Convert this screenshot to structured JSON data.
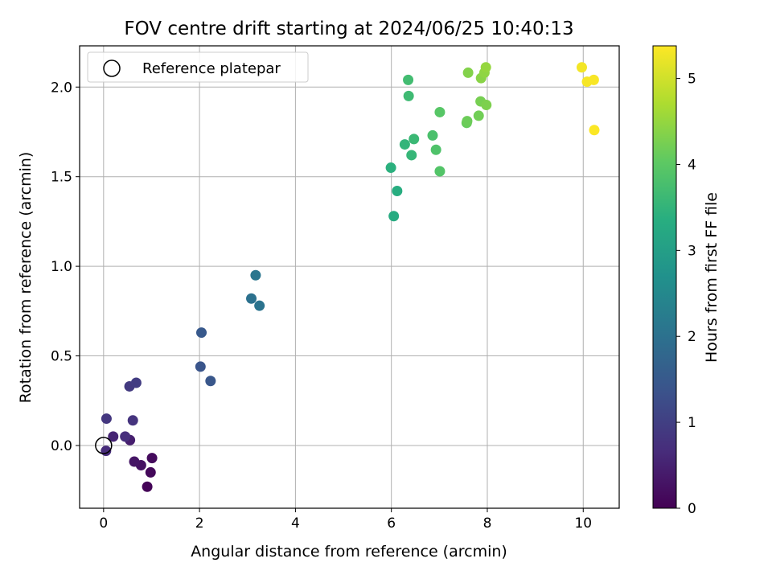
{
  "chart_data": {
    "type": "scatter",
    "title": "FOV centre drift starting at 2024/06/25 10:40:13",
    "xlabel": "Angular distance from reference (arcmin)",
    "ylabel": "Rotation from reference (arcmin)",
    "xlim": [
      -0.5,
      10.75
    ],
    "ylim": [
      -0.35,
      2.23
    ],
    "xticks": [
      "0",
      "2",
      "4",
      "6",
      "8",
      "10"
    ],
    "yticks": [
      "0.0",
      "0.5",
      "1.0",
      "1.5",
      "2.0"
    ],
    "grid": true,
    "legend": {
      "placement": "top-left",
      "entries": [
        "Reference platepar"
      ]
    },
    "reference_point": {
      "x": 0,
      "y": 0
    },
    "colorbar": {
      "label": "Hours from first FF file",
      "colormap": "viridis",
      "range": [
        0,
        5.38
      ],
      "ticks": [
        "0",
        "1",
        "2",
        "3",
        "4",
        "5"
      ]
    },
    "points": [
      {
        "x": 0.91,
        "y": -0.23,
        "t": 0.05
      },
      {
        "x": 0.98,
        "y": -0.15,
        "t": 0.1
      },
      {
        "x": 1.01,
        "y": -0.07,
        "t": 0.15
      },
      {
        "x": 0.78,
        "y": -0.11,
        "t": 0.25
      },
      {
        "x": 0.64,
        "y": -0.09,
        "t": 0.3
      },
      {
        "x": 0.55,
        "y": 0.03,
        "t": 0.45
      },
      {
        "x": 0.2,
        "y": 0.05,
        "t": 0.55
      },
      {
        "x": 0.05,
        "y": -0.03,
        "t": 0.65
      },
      {
        "x": 0.45,
        "y": 0.05,
        "t": 0.7
      },
      {
        "x": 0.61,
        "y": 0.14,
        "t": 0.8
      },
      {
        "x": 0.06,
        "y": 0.15,
        "t": 0.85
      },
      {
        "x": 0.54,
        "y": 0.33,
        "t": 0.9
      },
      {
        "x": 0.68,
        "y": 0.35,
        "t": 0.95
      },
      {
        "x": 2.02,
        "y": 0.44,
        "t": 1.4
      },
      {
        "x": 2.23,
        "y": 0.36,
        "t": 1.45
      },
      {
        "x": 2.04,
        "y": 0.63,
        "t": 1.5
      },
      {
        "x": 3.08,
        "y": 0.82,
        "t": 2.0
      },
      {
        "x": 3.25,
        "y": 0.78,
        "t": 2.05
      },
      {
        "x": 3.17,
        "y": 0.95,
        "t": 2.1
      },
      {
        "x": 6.05,
        "y": 1.28,
        "t": 3.3
      },
      {
        "x": 6.12,
        "y": 1.42,
        "t": 3.35
      },
      {
        "x": 5.99,
        "y": 1.55,
        "t": 3.4
      },
      {
        "x": 6.28,
        "y": 1.68,
        "t": 3.5
      },
      {
        "x": 6.42,
        "y": 1.62,
        "t": 3.55
      },
      {
        "x": 6.47,
        "y": 1.71,
        "t": 3.6
      },
      {
        "x": 6.36,
        "y": 1.95,
        "t": 3.65
      },
      {
        "x": 6.35,
        "y": 2.04,
        "t": 3.7
      },
      {
        "x": 6.86,
        "y": 1.73,
        "t": 3.8
      },
      {
        "x": 6.93,
        "y": 1.65,
        "t": 3.85
      },
      {
        "x": 7.01,
        "y": 1.53,
        "t": 3.9
      },
      {
        "x": 7.01,
        "y": 1.86,
        "t": 3.95
      },
      {
        "x": 7.57,
        "y": 1.8,
        "t": 4.1
      },
      {
        "x": 7.58,
        "y": 1.81,
        "t": 4.15
      },
      {
        "x": 7.82,
        "y": 1.84,
        "t": 4.2
      },
      {
        "x": 7.86,
        "y": 1.92,
        "t": 4.25
      },
      {
        "x": 7.98,
        "y": 1.9,
        "t": 4.3
      },
      {
        "x": 7.6,
        "y": 2.08,
        "t": 4.35
      },
      {
        "x": 7.87,
        "y": 2.05,
        "t": 4.4
      },
      {
        "x": 7.94,
        "y": 2.08,
        "t": 4.45
      },
      {
        "x": 7.97,
        "y": 2.11,
        "t": 4.5
      },
      {
        "x": 9.97,
        "y": 2.11,
        "t": 5.3
      },
      {
        "x": 10.08,
        "y": 2.03,
        "t": 5.32
      },
      {
        "x": 10.22,
        "y": 2.04,
        "t": 5.34
      },
      {
        "x": 10.23,
        "y": 1.76,
        "t": 5.36
      }
    ]
  }
}
